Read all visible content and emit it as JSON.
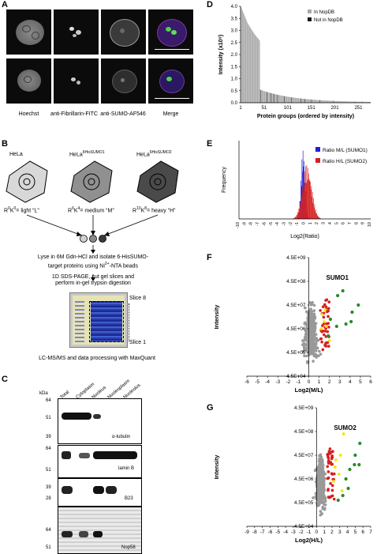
{
  "panels": {
    "a": "A",
    "b": "B",
    "c": "C",
    "d": "D",
    "e": "E",
    "f": "F",
    "g": "G"
  },
  "colors": {
    "gray": "#aaaaaa",
    "black": "#1a1a1a",
    "blue": "#1f1fdf",
    "red": "#d42020",
    "yellow": "#f5e400",
    "green": "#2a8a2a",
    "grayDots": "#999999"
  },
  "panelA": {
    "labels": [
      "Hoechst",
      "anti-Fibrillarin-FITC",
      "anti-SUMO-AF546",
      "Merge"
    ]
  },
  "panelB": {
    "cells": [
      {
        "name": "HeLa",
        "sup": "",
        "label": "R",
        "r": "0",
        "k": "0",
        "suffix": "= light “L”"
      },
      {
        "name": "HeLa",
        "sup": "6HisSUMO1",
        "label": "R",
        "r": "6",
        "k": "4",
        "suffix": "= medium “M”"
      },
      {
        "name": "HeLa",
        "sup": "6HisSUMO2",
        "label": "R",
        "r": "10",
        "k": "8",
        "suffix": "= heavy “H”"
      }
    ],
    "step1": [
      "Lyse in 6M Gdn-HCl and isolate 6-HisSUMO-",
      "target proteins using Ni",
      "2+",
      "-NTA beads"
    ],
    "step2": [
      "1D SDS-PAGE, cut gel slices and",
      "perform in-gel trypsin digestion"
    ],
    "slice_top": "Slice 8",
    "slice_bottom": "Slice 1",
    "step3": "LC-MS/MS and data processing with MaxQuant"
  },
  "panelC": {
    "kda": "kDa",
    "columns": [
      "Total",
      "Cytoplasm",
      "Nucleus",
      "Nucleoplasm",
      "Nucleolus"
    ],
    "blots": [
      {
        "name": "α-tubulin",
        "markers": [
          "64",
          "51",
          "39"
        ]
      },
      {
        "name": "lamin B",
        "markers": [
          "64",
          "51"
        ]
      },
      {
        "name": "B23",
        "markers": [
          "39",
          "28"
        ]
      },
      {
        "name": "Nop58",
        "markers": [
          "64",
          "51"
        ]
      }
    ]
  },
  "chart_data": [
    {
      "type": "bar",
      "panel": "D",
      "title": "",
      "xlabel": "Protein groups (ordered by intensity)",
      "ylabel": "Intensity (x10⁹)",
      "ylim": [
        0,
        4.0
      ],
      "yticks": [
        "0.0",
        "0.5",
        "1.0",
        "1.5",
        "2.0",
        "2.5",
        "3.0",
        "3.5",
        "4.0"
      ],
      "xticks": [
        "1",
        "51",
        "101",
        "151",
        "201",
        "251"
      ],
      "legend": [
        "In NopDB",
        "Not in NopDB"
      ],
      "n_bars": 276,
      "values_profile": [
        4.0,
        3.3,
        2.85,
        2.5,
        2.2,
        1.95,
        1.75,
        1.6,
        1.45,
        1.3,
        1.18,
        1.05,
        0.95,
        0.88,
        0.8,
        0.72,
        0.66,
        0.6,
        0.55,
        0.5
      ],
      "black_bar_positions": [
        42,
        56,
        64,
        70,
        78,
        92,
        108,
        128,
        136,
        150,
        168,
        196,
        242,
        258
      ]
    },
    {
      "type": "histogram",
      "panel": "E",
      "xlabel": "Log2(Ratio)",
      "ylabel": "Frequency",
      "xlim": [
        -10,
        10
      ],
      "xticks": [
        "-10",
        "-9",
        "-8",
        "-7",
        "-6",
        "-5",
        "-4",
        "-3",
        "-2",
        "-1",
        "0",
        "1",
        "2",
        "3",
        "4",
        "5",
        "6",
        "7",
        "8",
        "9",
        "10"
      ],
      "series": [
        {
          "name": "Ratio M/L (SUMO1)",
          "color": "blue",
          "center": -0.3,
          "spread": 0.3
        },
        {
          "name": "Ratio H/L (SUMO2)",
          "color": "red",
          "center": 0.3,
          "spread": 0.7
        }
      ]
    },
    {
      "type": "scatter",
      "panel": "F",
      "label": "SUMO1",
      "xlabel": "Log2(M/L)",
      "ylabel": "Intensity",
      "xlim": [
        -6,
        6
      ],
      "ylog": [
        4.5,
        9.5
      ],
      "xticks": [
        "-6",
        "-5",
        "-4",
        "-3",
        "-2",
        "-1",
        "0",
        "1",
        "2",
        "3",
        "4",
        "5",
        "6"
      ],
      "yticks": [
        "4.5E+04",
        "4.5E+05",
        "4.5E+06",
        "4.5E+07",
        "4.5E+08",
        "4.5E+09"
      ],
      "green_points": [
        [
          2.8,
          7.9
        ],
        [
          3.3,
          8.1
        ],
        [
          4.2,
          7.2
        ],
        [
          4.8,
          7.5
        ],
        [
          3.6,
          6.7
        ],
        [
          2.7,
          6.6
        ],
        [
          2.1,
          6.9
        ],
        [
          1.9,
          6.2
        ],
        [
          4.1,
          6.8
        ]
      ],
      "yellow_points": [
        [
          1.6,
          7.3
        ],
        [
          1.3,
          7.1
        ],
        [
          1.7,
          6.6
        ],
        [
          1.2,
          6.5
        ],
        [
          2.0,
          6.0
        ],
        [
          1.5,
          6.8
        ]
      ]
    },
    {
      "type": "scatter",
      "panel": "G",
      "label": "SUMO2",
      "xlabel": "Log2(H/L)",
      "ylabel": "Intensity",
      "xlim": [
        -9,
        7
      ],
      "ylog": [
        4.5,
        9.5
      ],
      "xticks": [
        "-9",
        "-8",
        "-7",
        "-6",
        "-5",
        "-4",
        "-3",
        "-2",
        "-1",
        "0",
        "1",
        "2",
        "3",
        "4",
        "5",
        "6",
        "7"
      ],
      "yticks": [
        "4.5E+04",
        "4.5E+05",
        "4.5E+06",
        "4.5E+07",
        "4.5E+08",
        "4.5E+09"
      ],
      "green_points": [
        [
          5.6,
          8.0
        ],
        [
          5.0,
          7.5
        ],
        [
          4.9,
          7.1
        ],
        [
          5.5,
          7.1
        ],
        [
          4.3,
          6.9
        ],
        [
          3.8,
          6.5
        ],
        [
          4.1,
          6.1
        ],
        [
          3.4,
          5.8
        ],
        [
          2.8,
          5.6
        ]
      ],
      "yellow_points": [
        [
          3.5,
          8.4
        ],
        [
          3.1,
          7.5
        ],
        [
          2.4,
          7.0
        ],
        [
          2.9,
          6.7
        ],
        [
          2.2,
          6.4
        ],
        [
          3.3,
          6.0
        ],
        [
          2.5,
          7.3
        ]
      ]
    }
  ]
}
